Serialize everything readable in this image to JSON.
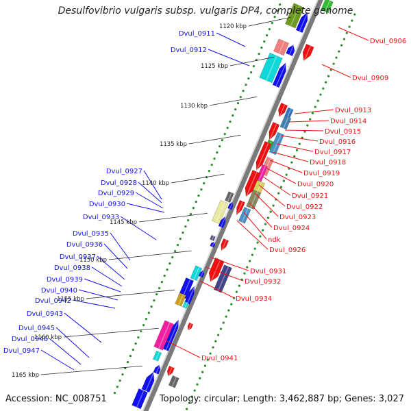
{
  "title": "Desulfovibrio vulgaris subsp. vulgaris DP4, complete genome",
  "accession": "Accession: NC_008751",
  "summary": "Topology: circular; Length: 3,462,887 bp; Genes: 3,027",
  "ticks": [
    "1120 kbp",
    "1125 kbp",
    "1130 kbp",
    "1135 kbp",
    "1140 kbp",
    "1145 kbp",
    "1150 kbp",
    "1155 kbp",
    "1160 kbp",
    "1165 kbp"
  ],
  "left_labels": [
    "Dvul_0911",
    "Dvul_0912",
    "Dvul_0927",
    "Dvul_0928",
    "Dvul_0929",
    "Dvul_0930",
    "Dvul_0933",
    "Dvul_0935",
    "Dvul_0936",
    "Dvul_0937",
    "Dvul_0938",
    "Dvul_0939",
    "Dvul_0940",
    "Dvul_0942",
    "Dvul_0943",
    "Dvul_0945",
    "Dvul_0946",
    "Dvul_0947"
  ],
  "right_labels": [
    "Dvul_0906",
    "Dvul_0909",
    "Dvul_0913",
    "Dvul_0914",
    "Dvul_0915",
    "Dvul_0916",
    "Dvul_0917",
    "Dvul_0918",
    "Dvul_0919",
    "Dvul_0920",
    "Dvul_0921",
    "Dvul_0922",
    "Dvul_0923",
    "Dvul_0924",
    "ndk",
    "Dvul_0926",
    "Dvul_0931",
    "Dvul_0932",
    "Dvul_0934",
    "Dvul_0941"
  ],
  "colors": {
    "forward_strand": "#1010ee",
    "reverse_strand": "#ee1010",
    "backbone": "#7a7a7a",
    "tick_dots": "#2a8a2a"
  }
}
